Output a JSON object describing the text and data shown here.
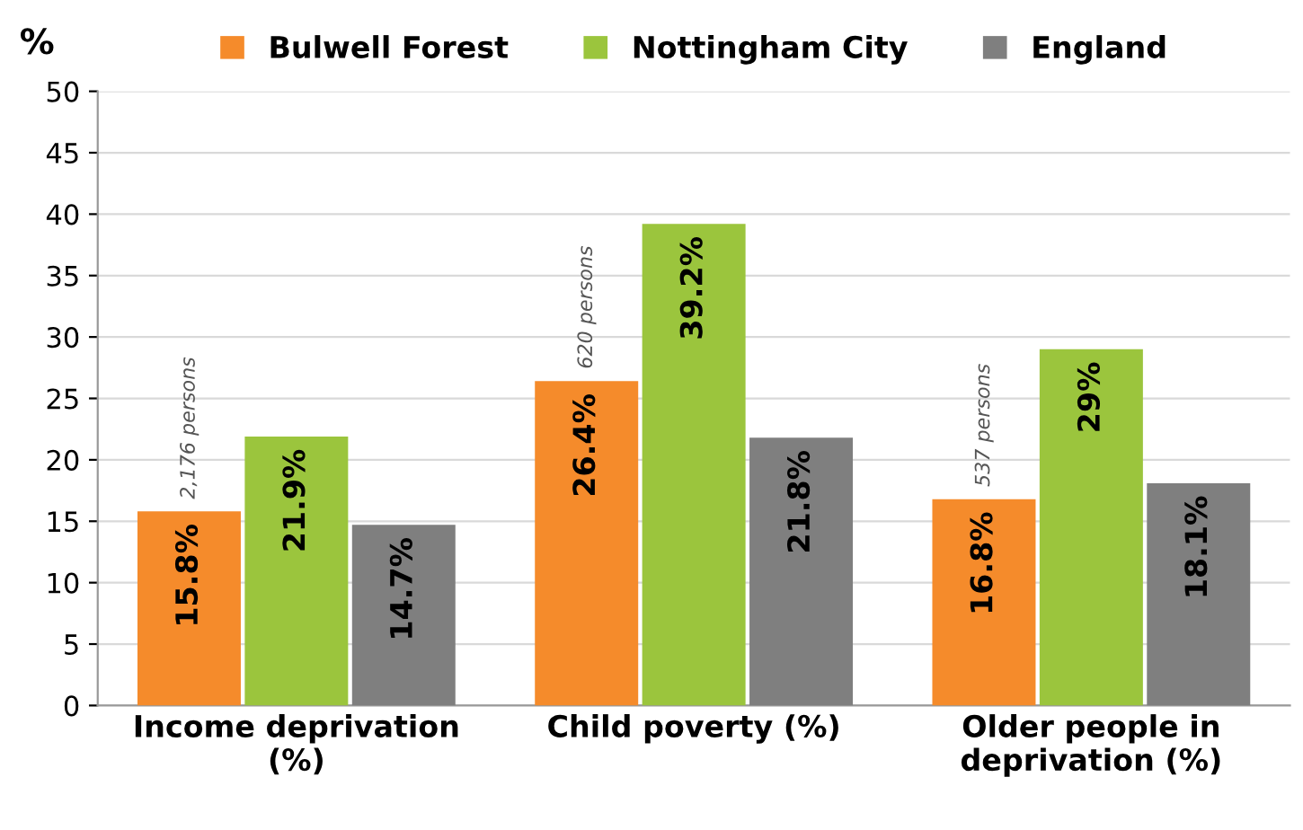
{
  "chart_data": {
    "type": "bar",
    "ylabel": "%",
    "categories": [
      "Income deprivation\n(%)",
      "Child poverty (%)",
      "Older people in\ndeprivation (%)"
    ],
    "series": [
      {
        "name": "Bulwell Forest",
        "color": "#f58b2b",
        "values": [
          15.8,
          26.4,
          16.8
        ],
        "value_labels": [
          "15.8%",
          "26.4%",
          "16.8%"
        ]
      },
      {
        "name": "Nottingham City",
        "color": "#9bc53d",
        "values": [
          21.9,
          39.2,
          29
        ],
        "value_labels": [
          "21.9%",
          "39.2%",
          "29%"
        ]
      },
      {
        "name": "England",
        "color": "#7f7f7f",
        "values": [
          14.7,
          21.8,
          18.1
        ],
        "value_labels": [
          "14.7%",
          "21.8%",
          "18.1%"
        ]
      }
    ],
    "annotations": [
      "2,176 persons",
      "620 persons",
      "537 persons"
    ],
    "ylim": [
      0,
      50
    ],
    "yticks": [
      0,
      5,
      10,
      15,
      20,
      25,
      30,
      35,
      40,
      45,
      50
    ],
    "grid": "y",
    "legend": "top"
  }
}
